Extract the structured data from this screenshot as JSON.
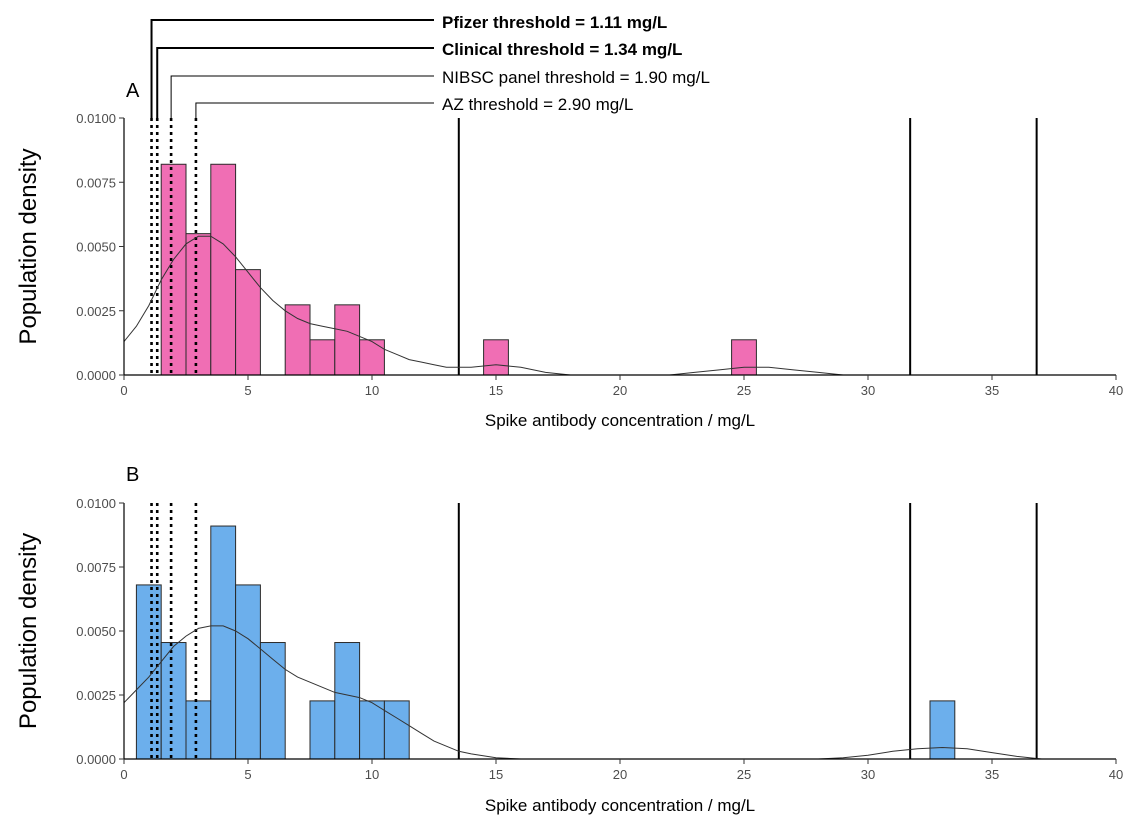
{
  "figure": {
    "annotations": [
      {
        "label": "Pfizer threshold = 1.11 mg/L",
        "x": 1.11,
        "bold": true
      },
      {
        "label": "Clinical threshold = 1.34 mg/L",
        "x": 1.34,
        "bold": true
      },
      {
        "label": "NIBSC panel threshold = 1.90 mg/L",
        "x": 1.9,
        "bold": false
      },
      {
        "label": "AZ threshold = 2.90 mg/L",
        "x": 2.9,
        "bold": false
      }
    ]
  },
  "chart_data": [
    {
      "type": "bar",
      "panel_label": "A",
      "xlabel": "Spike antibody concentration / mg/L",
      "ylabel": "Population density",
      "xlim": [
        0,
        40
      ],
      "ylim": [
        0,
        0.01
      ],
      "xticks": [
        0,
        5,
        10,
        15,
        20,
        25,
        30,
        35,
        40
      ],
      "yticks": [
        "0.0000",
        "0.0025",
        "0.0050",
        "0.0075",
        "0.0100"
      ],
      "bar_color": "#f06eb4",
      "bins": [
        {
          "x0": 1.5,
          "x1": 2.5,
          "value": 0.0082
        },
        {
          "x0": 2.5,
          "x1": 3.5,
          "value": 0.0055
        },
        {
          "x0": 3.5,
          "x1": 4.5,
          "value": 0.0082
        },
        {
          "x0": 4.5,
          "x1": 5.5,
          "value": 0.0041
        },
        {
          "x0": 6.5,
          "x1": 7.5,
          "value": 0.00273
        },
        {
          "x0": 7.5,
          "x1": 8.5,
          "value": 0.00137
        },
        {
          "x0": 8.5,
          "x1": 9.5,
          "value": 0.00273
        },
        {
          "x0": 9.5,
          "x1": 10.5,
          "value": 0.00137
        },
        {
          "x0": 14.5,
          "x1": 15.5,
          "value": 0.00137
        },
        {
          "x0": 24.5,
          "x1": 25.5,
          "value": 0.00137
        }
      ],
      "density_curve": {
        "x": [
          0,
          0.5,
          1,
          1.5,
          2,
          2.5,
          3,
          3.5,
          4,
          4.5,
          5,
          5.5,
          6,
          6.5,
          7,
          7.5,
          8,
          8.5,
          9,
          9.5,
          10,
          10.5,
          11,
          11.5,
          12,
          12.5,
          13,
          14,
          15,
          16,
          17,
          18,
          19,
          20,
          21,
          22,
          23,
          24,
          25,
          26,
          27,
          28,
          29
        ],
        "y": [
          0.0013,
          0.0019,
          0.0027,
          0.0037,
          0.0045,
          0.0051,
          0.0054,
          0.0054,
          0.0051,
          0.0046,
          0.004,
          0.0034,
          0.0029,
          0.0025,
          0.0022,
          0.002,
          0.0019,
          0.0018,
          0.0017,
          0.0015,
          0.0013,
          0.001,
          0.0008,
          0.0006,
          0.0005,
          0.0004,
          0.0003,
          0.0003,
          0.0004,
          0.0003,
          0.0001,
          0.0,
          0.0,
          0.0,
          0.0,
          0.0,
          0.0001,
          0.0002,
          0.0003,
          0.0003,
          0.0002,
          0.0001,
          0.0
        ]
      },
      "vlines_dotted": [
        1.11,
        1.34,
        1.9,
        2.9
      ],
      "vlines_solid": [
        13.5,
        31.7,
        36.8
      ]
    },
    {
      "type": "bar",
      "panel_label": "B",
      "xlabel": "Spike antibody concentration / mg/L",
      "ylabel": "Population density",
      "xlim": [
        0,
        40
      ],
      "ylim": [
        0,
        0.01
      ],
      "xticks": [
        0,
        5,
        10,
        15,
        20,
        25,
        30,
        35,
        40
      ],
      "yticks": [
        "0.0000",
        "0.0025",
        "0.0050",
        "0.0075",
        "0.0100"
      ],
      "bar_color": "#6cafec",
      "bins": [
        {
          "x0": 0.5,
          "x1": 1.5,
          "value": 0.0068
        },
        {
          "x0": 1.5,
          "x1": 2.5,
          "value": 0.00455
        },
        {
          "x0": 2.5,
          "x1": 3.5,
          "value": 0.00227
        },
        {
          "x0": 3.5,
          "x1": 4.5,
          "value": 0.0091
        },
        {
          "x0": 4.5,
          "x1": 5.5,
          "value": 0.0068
        },
        {
          "x0": 5.5,
          "x1": 6.5,
          "value": 0.00455
        },
        {
          "x0": 7.5,
          "x1": 8.5,
          "value": 0.00227
        },
        {
          "x0": 8.5,
          "x1": 9.5,
          "value": 0.00455
        },
        {
          "x0": 9.5,
          "x1": 10.5,
          "value": 0.00227
        },
        {
          "x0": 10.5,
          "x1": 11.5,
          "value": 0.00227
        },
        {
          "x0": 32.5,
          "x1": 33.5,
          "value": 0.00227
        }
      ],
      "density_curve": {
        "x": [
          0,
          0.5,
          1,
          1.5,
          2,
          2.5,
          3,
          3.5,
          4,
          4.5,
          5,
          5.5,
          6,
          6.5,
          7,
          7.5,
          8,
          8.5,
          9,
          9.5,
          10,
          10.5,
          11,
          11.5,
          12,
          12.5,
          13,
          13.5,
          14,
          15,
          16,
          20,
          25,
          28,
          29,
          30,
          31,
          32,
          33,
          34,
          35,
          36,
          37
        ],
        "y": [
          0.0022,
          0.0027,
          0.0032,
          0.0038,
          0.0044,
          0.0048,
          0.0051,
          0.0052,
          0.0052,
          0.005,
          0.0047,
          0.0043,
          0.0039,
          0.0035,
          0.0032,
          0.003,
          0.0028,
          0.0026,
          0.0025,
          0.0024,
          0.0022,
          0.0019,
          0.0016,
          0.0013,
          0.001,
          0.0007,
          0.0005,
          0.0003,
          0.0002,
          5e-05,
          0.0,
          0.0,
          0.0,
          0.0,
          5e-05,
          0.00015,
          0.0003,
          0.0004,
          0.00045,
          0.0004,
          0.00025,
          0.0001,
          0.0
        ]
      },
      "vlines_dotted": [
        1.11,
        1.34,
        1.9,
        2.9
      ],
      "vlines_solid": [
        13.5,
        31.7,
        36.8
      ]
    }
  ]
}
